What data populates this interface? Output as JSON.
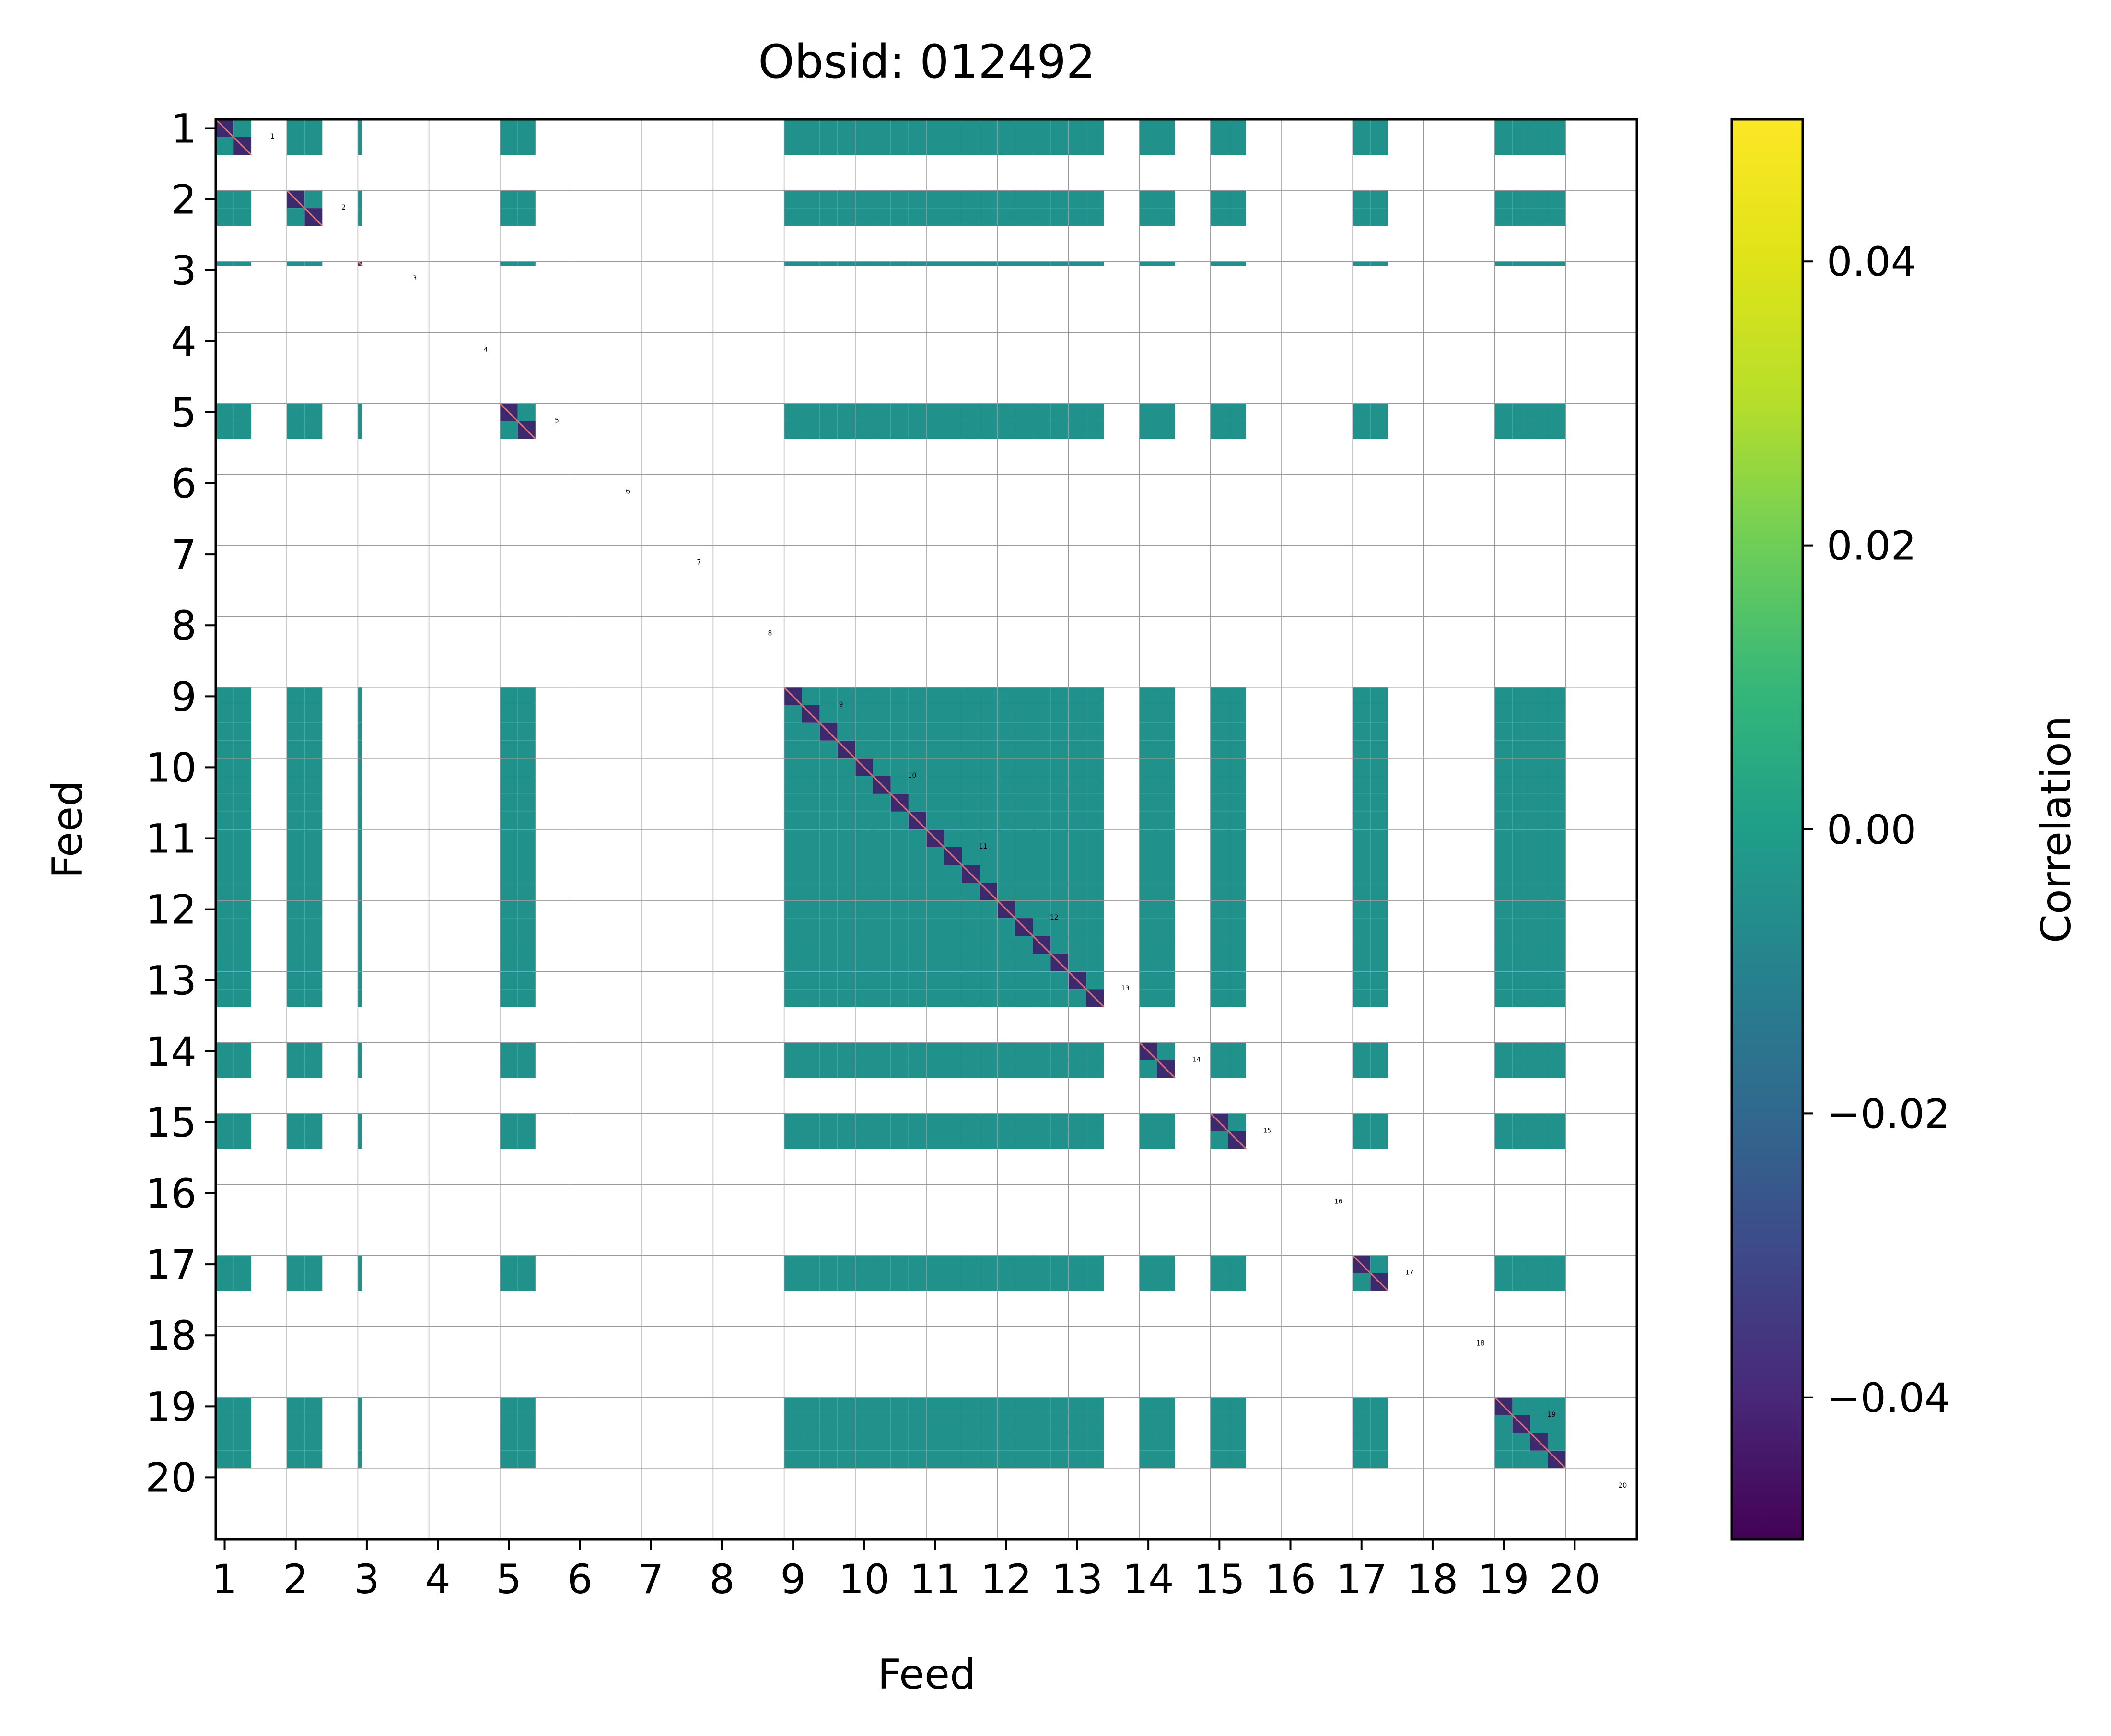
{
  "chart_data": {
    "type": "heatmap",
    "title": "Obsid: 012492",
    "xlabel": "Feed",
    "ylabel": "Feed",
    "colorbar_label": "Correlation",
    "colormap": "viridis",
    "clim": [
      -0.05,
      0.05
    ],
    "colorbar_ticks": [
      0.04,
      0.02,
      0.0,
      -0.02,
      -0.04
    ],
    "colorbar_tick_labels": [
      "0.04",
      "0.02",
      "0.00",
      "−0.02",
      "−0.04"
    ],
    "feeds": [
      1,
      2,
      3,
      4,
      5,
      6,
      7,
      8,
      9,
      10,
      11,
      12,
      13,
      14,
      15,
      16,
      17,
      18,
      19,
      20
    ],
    "tick_labels": [
      "1",
      "2",
      "3",
      "4",
      "5",
      "6",
      "7",
      "8",
      "9",
      "10",
      "11",
      "12",
      "13",
      "14",
      "15",
      "16",
      "17",
      "18",
      "19",
      "20"
    ],
    "block_labels": [
      "1",
      "2",
      "3",
      "4",
      "5",
      "6",
      "7",
      "8",
      "9",
      "10",
      "11",
      "12",
      "13",
      "14",
      "15",
      "16",
      "17",
      "18",
      "19",
      "20"
    ],
    "feed_sideband_coverage": [
      [
        1,
        1,
        0,
        0
      ],
      [
        1,
        1,
        0,
        0
      ],
      [
        0.25,
        0,
        0,
        0
      ],
      [
        0,
        0,
        0,
        0
      ],
      [
        1,
        1,
        0,
        0
      ],
      [
        0,
        0,
        0,
        0
      ],
      [
        0,
        0,
        0,
        0
      ],
      [
        0,
        0,
        0,
        0
      ],
      [
        1,
        1,
        1,
        1
      ],
      [
        1,
        1,
        1,
        1
      ],
      [
        1,
        1,
        1,
        1
      ],
      [
        1,
        1,
        1,
        1
      ],
      [
        1,
        1,
        0,
        0
      ],
      [
        1,
        1,
        0,
        0
      ],
      [
        1,
        1,
        0,
        0
      ],
      [
        0,
        0,
        0,
        0
      ],
      [
        1,
        1,
        0,
        0
      ],
      [
        0,
        0,
        0,
        0
      ],
      [
        1,
        1,
        1,
        1
      ],
      [
        0,
        0,
        0,
        0
      ]
    ],
    "offdiagonal_correlation": 0.0,
    "diagonal_correlation": -0.035,
    "grid": true,
    "colors": {
      "background": "#ffffff",
      "offdiag": "#21918c",
      "diagonal": "#3b2a6e",
      "gridline": "#9a9a9a"
    }
  }
}
